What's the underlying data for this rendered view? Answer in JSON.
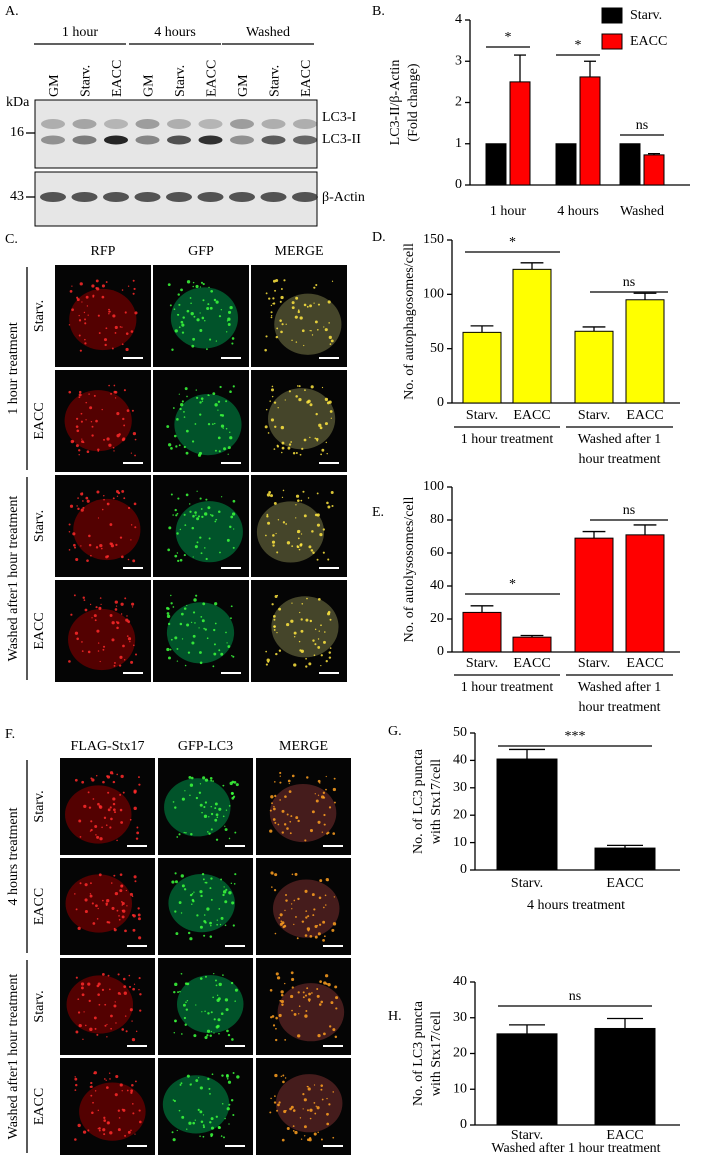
{
  "panel_a": {
    "label": "A.",
    "groups": [
      "1 hour",
      "4 hours",
      "Washed"
    ],
    "lanes": [
      "GM",
      "Starv.",
      "EACC",
      "GM",
      "Starv.",
      "EACC",
      "GM",
      "Starv.",
      "EACC"
    ],
    "unit": "kDa",
    "markers": [
      16,
      43
    ],
    "bands": [
      "LC3-I",
      "LC3-II",
      "β-Actin"
    ]
  },
  "panel_c": {
    "label": "C.",
    "columns": [
      "RFP",
      "GFP",
      "MERGE"
    ],
    "groups": [
      "1 hour treatment",
      "Washed after1 hour treatment"
    ],
    "rows": [
      "Starv.",
      "EACC",
      "Starv.",
      "EACC"
    ]
  },
  "panel_f": {
    "label": "F.",
    "columns": [
      "FLAG-Stx17",
      "GFP-LC3",
      "MERGE"
    ],
    "groups": [
      "4 hours treatment",
      "Washed after1 hour treatment"
    ],
    "rows": [
      "Starv.",
      "EACC",
      "Starv.",
      "EACC"
    ]
  },
  "chart_data": [
    {
      "type": "bar",
      "label": "B.",
      "categories": [
        "1 hour",
        "4 hours",
        "Washed"
      ],
      "series": [
        {
          "name": "Starv.",
          "color": "#000000",
          "values": [
            1,
            1,
            1
          ]
        },
        {
          "name": "EACC",
          "color": "#ff0000",
          "values": [
            2.5,
            2.62,
            0.73
          ],
          "errors": [
            0.65,
            0.38,
            0.03
          ]
        }
      ],
      "ylim": [
        0,
        4
      ],
      "yticks": [
        0,
        1,
        2,
        3,
        4
      ],
      "ylabel": [
        "LC3-II/β-Actin",
        "(Fold change)"
      ],
      "annotations": [
        "*",
        "*",
        "ns"
      ],
      "legend": "top-right"
    },
    {
      "type": "bar",
      "label": "D.",
      "categories": [
        "Starv.",
        "EACC",
        "Starv.",
        "EACC"
      ],
      "series": [
        {
          "color": "#ffff00",
          "values": [
            65,
            123,
            66,
            95
          ],
          "errors": [
            6,
            6,
            4,
            6
          ]
        }
      ],
      "ylim": [
        0,
        150
      ],
      "yticks": [
        0,
        50,
        100,
        150
      ],
      "ylabel": [
        "No. of autophagosomes/cell"
      ],
      "groups": [
        [
          "1 hour treatment"
        ],
        [
          "Washed after 1",
          "hour treatment"
        ]
      ],
      "annotations": [
        "*",
        "ns"
      ]
    },
    {
      "type": "bar",
      "label": "E.",
      "categories": [
        "Starv.",
        "EACC",
        "Starv.",
        "EACC"
      ],
      "series": [
        {
          "color": "#ff0000",
          "values": [
            24,
            9,
            69,
            71
          ],
          "errors": [
            4,
            1,
            4,
            6
          ]
        }
      ],
      "ylim": [
        0,
        100
      ],
      "yticks": [
        0,
        20,
        40,
        60,
        80,
        100
      ],
      "ylabel": [
        "No. of autolysosomes/cell"
      ],
      "groups": [
        [
          "1 hour treatment"
        ],
        [
          "Washed after 1",
          "hour treatment"
        ]
      ],
      "annotations": [
        "*",
        "ns"
      ]
    },
    {
      "type": "bar",
      "label": "G.",
      "categories": [
        "Starv.",
        "EACC"
      ],
      "series": [
        {
          "color": "#000000",
          "values": [
            40.5,
            8
          ],
          "errors": [
            3.5,
            1
          ]
        }
      ],
      "ylim": [
        0,
        50
      ],
      "yticks": [
        0,
        10,
        20,
        30,
        40,
        50
      ],
      "ylabel": [
        "No. of LC3 puncta",
        "with Stx17/cell"
      ],
      "groups": [
        [
          "4 hours treatment"
        ]
      ],
      "annotations": [
        "***"
      ]
    },
    {
      "type": "bar",
      "label": "H.",
      "categories": [
        "Starv.",
        "EACC"
      ],
      "series": [
        {
          "color": "#000000",
          "values": [
            25.5,
            27
          ],
          "errors": [
            2.5,
            2.8
          ]
        }
      ],
      "ylim": [
        0,
        40
      ],
      "yticks": [
        0,
        10,
        20,
        30,
        40
      ],
      "ylabel": [
        "No. of LC3 puncta",
        "with Stx17/cell"
      ],
      "groups": [
        [
          "Washed after 1 hour treatment"
        ]
      ],
      "annotations": [
        "ns"
      ]
    }
  ]
}
